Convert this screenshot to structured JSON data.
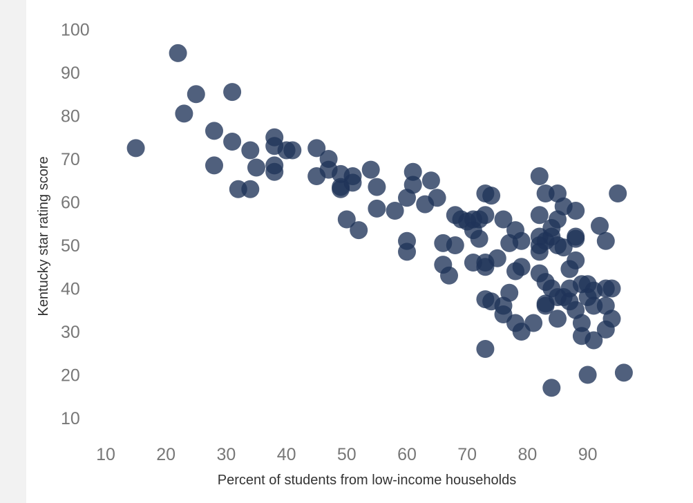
{
  "chart_data": {
    "type": "scatter",
    "title": "",
    "xlabel": "Percent of students from low-income households",
    "ylabel": "Kentucky star rating score",
    "xlim": [
      10,
      97
    ],
    "ylim": [
      10,
      100
    ],
    "x_ticks": [
      "10",
      "20",
      "30",
      "40",
      "50",
      "60",
      "70",
      "80",
      "90"
    ],
    "y_ticks": [
      "10",
      "20",
      "30",
      "40",
      "50",
      "60",
      "70",
      "80",
      "90",
      "100"
    ],
    "grid": false,
    "legend": "none",
    "point_color": "#1f3358",
    "points": [
      [
        15,
        72.5
      ],
      [
        22,
        94.5
      ],
      [
        23,
        80.5
      ],
      [
        25,
        85
      ],
      [
        28,
        76.5
      ],
      [
        28,
        68.5
      ],
      [
        31,
        85.5
      ],
      [
        31,
        74
      ],
      [
        32,
        63
      ],
      [
        34,
        72
      ],
      [
        34,
        63
      ],
      [
        35,
        68
      ],
      [
        38,
        75
      ],
      [
        38,
        73
      ],
      [
        38,
        68.5
      ],
      [
        38,
        67
      ],
      [
        40,
        72
      ],
      [
        41,
        72
      ],
      [
        45,
        72.5
      ],
      [
        45,
        66
      ],
      [
        47,
        70
      ],
      [
        47,
        67.5
      ],
      [
        49,
        66.5
      ],
      [
        49,
        63.5
      ],
      [
        49,
        63
      ],
      [
        50,
        56
      ],
      [
        51,
        66
      ],
      [
        51,
        64.5
      ],
      [
        52,
        53.5
      ],
      [
        54,
        67.5
      ],
      [
        55,
        63.5
      ],
      [
        55,
        58.5
      ],
      [
        58,
        58
      ],
      [
        60,
        61
      ],
      [
        60,
        51
      ],
      [
        60,
        48.5
      ],
      [
        61,
        67
      ],
      [
        61,
        64
      ],
      [
        63,
        59.5
      ],
      [
        64,
        65
      ],
      [
        65,
        61
      ],
      [
        66,
        50.5
      ],
      [
        66,
        45.5
      ],
      [
        67,
        43
      ],
      [
        68,
        57
      ],
      [
        68,
        50
      ],
      [
        69,
        56
      ],
      [
        70,
        55.5
      ],
      [
        71,
        56
      ],
      [
        71,
        46
      ],
      [
        71,
        53.5
      ],
      [
        72,
        56
      ],
      [
        72,
        51.5
      ],
      [
        73,
        62
      ],
      [
        73,
        57
      ],
      [
        73,
        46
      ],
      [
        73,
        45
      ],
      [
        73,
        37.5
      ],
      [
        73,
        26
      ],
      [
        74,
        61.5
      ],
      [
        74,
        37
      ],
      [
        75,
        47
      ],
      [
        76,
        56
      ],
      [
        76,
        36
      ],
      [
        76,
        34
      ],
      [
        77,
        50.5
      ],
      [
        77,
        39
      ],
      [
        78,
        53.5
      ],
      [
        78,
        44
      ],
      [
        78,
        32
      ],
      [
        79,
        51
      ],
      [
        79,
        45
      ],
      [
        79,
        30
      ],
      [
        81,
        32
      ],
      [
        82,
        66
      ],
      [
        82,
        57
      ],
      [
        82,
        52
      ],
      [
        82,
        50
      ],
      [
        82,
        48.5
      ],
      [
        82,
        43.5
      ],
      [
        83,
        62
      ],
      [
        83,
        51
      ],
      [
        83,
        41.5
      ],
      [
        83,
        36.5
      ],
      [
        83,
        36
      ],
      [
        84,
        54
      ],
      [
        84,
        52
      ],
      [
        84,
        40
      ],
      [
        84,
        17
      ],
      [
        85,
        62
      ],
      [
        85,
        56
      ],
      [
        85,
        50
      ],
      [
        85,
        38
      ],
      [
        85,
        33
      ],
      [
        86,
        59
      ],
      [
        86,
        49.5
      ],
      [
        86,
        38
      ],
      [
        87,
        44.5
      ],
      [
        87,
        40
      ],
      [
        87,
        37
      ],
      [
        88,
        58
      ],
      [
        88,
        52
      ],
      [
        88,
        51.5
      ],
      [
        88,
        46.5
      ],
      [
        88,
        35
      ],
      [
        89,
        41
      ],
      [
        89,
        32
      ],
      [
        89,
        29
      ],
      [
        90,
        41
      ],
      [
        90,
        38
      ],
      [
        90,
        20
      ],
      [
        91,
        39.5
      ],
      [
        91,
        36
      ],
      [
        91,
        28
      ],
      [
        92,
        54.5
      ],
      [
        93,
        51
      ],
      [
        93,
        40
      ],
      [
        93,
        36
      ],
      [
        93,
        30.5
      ],
      [
        94,
        40
      ],
      [
        94,
        33
      ],
      [
        95,
        62
      ],
      [
        96,
        20.5
      ]
    ]
  }
}
